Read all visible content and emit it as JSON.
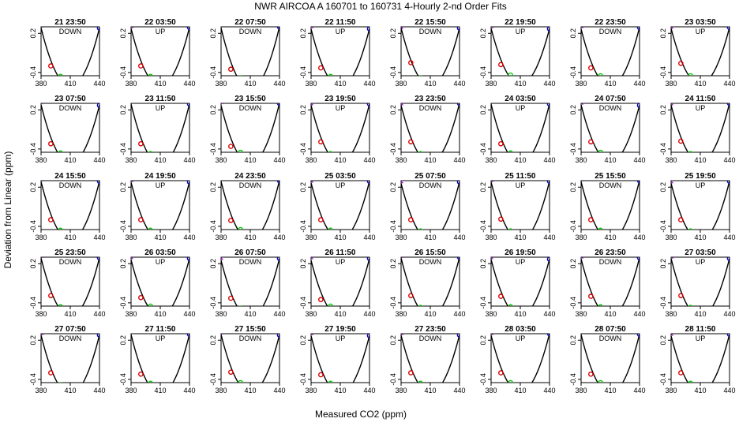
{
  "chart_data": {
    "type": "scatter",
    "title": "NWR   AIRCOA A   160701 to 160731   4-Hourly 2-nd Order Fits",
    "xlabel": "Measured CO2 (ppm)",
    "ylabel": "Deviation from Linear (ppm)",
    "xlim": [
      380,
      440
    ],
    "ylim": [
      -0.45,
      0.3
    ],
    "xticks": [
      "380",
      "410",
      "440"
    ],
    "yticks": [
      "-0.4",
      "0.2"
    ],
    "grid": false,
    "layout": "5 rows x 8 columns of small panels",
    "colors": {
      "curve": "#000000",
      "point_1": "#9900cc",
      "point_2": "#dd0000",
      "point_3": "#00cc00",
      "point_4": "#0000cc"
    },
    "panels": [
      {
        "title": "21 23:50",
        "mode": "DOWN",
        "points": [
          [
            380,
            0.32
          ],
          [
            390,
            -0.3
          ],
          [
            400,
            -0.46
          ],
          [
            440,
            0.28
          ]
        ]
      },
      {
        "title": "22 03:50",
        "mode": "UP",
        "points": [
          [
            380,
            0.31
          ],
          [
            390,
            -0.3
          ],
          [
            400,
            -0.46
          ],
          [
            440,
            0.29
          ]
        ]
      },
      {
        "title": "22 07:50",
        "mode": "DOWN",
        "points": [
          [
            380,
            0.33
          ],
          [
            390,
            -0.35
          ],
          [
            400,
            -0.48
          ],
          [
            440,
            0.3
          ]
        ]
      },
      {
        "title": "22 11:50",
        "mode": "UP",
        "points": [
          [
            380,
            0.31
          ],
          [
            390,
            -0.33
          ],
          [
            400,
            -0.46
          ],
          [
            440,
            0.27
          ]
        ]
      },
      {
        "title": "22 15:50",
        "mode": "DOWN",
        "points": [
          [
            380,
            0.3
          ],
          [
            390,
            -0.25
          ],
          [
            400,
            -0.48
          ],
          [
            440,
            0.28
          ]
        ]
      },
      {
        "title": "22 19:50",
        "mode": "UP",
        "points": [
          [
            380,
            0.31
          ],
          [
            390,
            -0.28
          ],
          [
            400,
            -0.44
          ],
          [
            440,
            0.27
          ]
        ]
      },
      {
        "title": "22 23:50",
        "mode": "DOWN",
        "points": [
          [
            380,
            0.31
          ],
          [
            390,
            -0.33
          ],
          [
            400,
            -0.45
          ],
          [
            440,
            0.29
          ]
        ]
      },
      {
        "title": "23 03:50",
        "mode": "UP",
        "points": [
          [
            380,
            0.3
          ],
          [
            390,
            -0.26
          ],
          [
            400,
            -0.45
          ],
          [
            440,
            0.29
          ]
        ]
      },
      {
        "title": "23 07:50",
        "mode": "DOWN",
        "points": [
          [
            380,
            0.32
          ],
          [
            390,
            -0.32
          ],
          [
            400,
            -0.46
          ],
          [
            440,
            0.27
          ]
        ]
      },
      {
        "title": "23 11:50",
        "mode": "UP",
        "points": [
          [
            380,
            0.33
          ],
          [
            390,
            -0.32
          ],
          [
            400,
            -0.47
          ],
          [
            440,
            0.29
          ]
        ]
      },
      {
        "title": "23 15:50",
        "mode": "DOWN",
        "points": [
          [
            380,
            0.32
          ],
          [
            390,
            -0.36
          ],
          [
            400,
            -0.45
          ],
          [
            440,
            0.3
          ]
        ]
      },
      {
        "title": "23 19:50",
        "mode": "UP",
        "points": [
          [
            380,
            0.3
          ],
          [
            390,
            -0.29
          ],
          [
            400,
            -0.47
          ],
          [
            440,
            0.29
          ]
        ]
      },
      {
        "title": "23 23:50",
        "mode": "DOWN",
        "points": [
          [
            380,
            0.3
          ],
          [
            390,
            -0.29
          ],
          [
            400,
            -0.47
          ],
          [
            440,
            0.3
          ]
        ]
      },
      {
        "title": "24 03:50",
        "mode": "UP",
        "points": [
          [
            380,
            0.33
          ],
          [
            390,
            -0.32
          ],
          [
            400,
            -0.46
          ],
          [
            440,
            0.29
          ]
        ]
      },
      {
        "title": "24 07:50",
        "mode": "DOWN",
        "points": [
          [
            380,
            0.31
          ],
          [
            390,
            -0.29
          ],
          [
            400,
            -0.45
          ],
          [
            440,
            0.27
          ]
        ]
      },
      {
        "title": "24 11:50",
        "mode": "UP",
        "points": [
          [
            380,
            0.3
          ],
          [
            390,
            -0.28
          ],
          [
            400,
            -0.47
          ],
          [
            440,
            0.3
          ]
        ]
      },
      {
        "title": "24 15:50",
        "mode": "DOWN",
        "points": [
          [
            380,
            0.32
          ],
          [
            390,
            -0.3
          ],
          [
            400,
            -0.46
          ],
          [
            440,
            0.29
          ]
        ]
      },
      {
        "title": "24 19:50",
        "mode": "UP",
        "points": [
          [
            380,
            0.31
          ],
          [
            390,
            -0.3
          ],
          [
            400,
            -0.46
          ],
          [
            440,
            0.28
          ]
        ]
      },
      {
        "title": "24 23:50",
        "mode": "DOWN",
        "points": [
          [
            380,
            0.33
          ],
          [
            390,
            -0.31
          ],
          [
            400,
            -0.45
          ],
          [
            440,
            0.3
          ]
        ]
      },
      {
        "title": "25 03:50",
        "mode": "UP",
        "points": [
          [
            380,
            0.3
          ],
          [
            390,
            -0.3
          ],
          [
            400,
            -0.46
          ],
          [
            440,
            0.29
          ]
        ]
      },
      {
        "title": "25 07:50",
        "mode": "DOWN",
        "points": [
          [
            380,
            0.29
          ],
          [
            390,
            -0.3
          ],
          [
            400,
            -0.47
          ],
          [
            440,
            0.28
          ]
        ]
      },
      {
        "title": "25 11:50",
        "mode": "UP",
        "points": [
          [
            380,
            0.31
          ],
          [
            390,
            -0.29
          ],
          [
            400,
            -0.47
          ],
          [
            440,
            0.29
          ]
        ]
      },
      {
        "title": "25 15:50",
        "mode": "DOWN",
        "points": [
          [
            380,
            0.32
          ],
          [
            390,
            -0.3
          ],
          [
            400,
            -0.46
          ],
          [
            440,
            0.3
          ]
        ]
      },
      {
        "title": "25 19:50",
        "mode": "UP",
        "points": [
          [
            380,
            0.29
          ],
          [
            390,
            -0.3
          ],
          [
            400,
            -0.47
          ],
          [
            440,
            0.29
          ]
        ]
      },
      {
        "title": "25 23:50",
        "mode": "DOWN",
        "points": [
          [
            380,
            0.32
          ],
          [
            390,
            -0.29
          ],
          [
            400,
            -0.46
          ],
          [
            440,
            0.29
          ]
        ]
      },
      {
        "title": "26 03:50",
        "mode": "UP",
        "points": [
          [
            380,
            0.3
          ],
          [
            390,
            -0.32
          ],
          [
            400,
            -0.45
          ],
          [
            440,
            0.28
          ]
        ]
      },
      {
        "title": "26 07:50",
        "mode": "DOWN",
        "points": [
          [
            380,
            0.29
          ],
          [
            390,
            -0.33
          ],
          [
            400,
            -0.48
          ],
          [
            440,
            0.28
          ]
        ]
      },
      {
        "title": "26 11:50",
        "mode": "UP",
        "points": [
          [
            380,
            0.3
          ],
          [
            390,
            -0.35
          ],
          [
            400,
            -0.45
          ],
          [
            440,
            0.28
          ]
        ]
      },
      {
        "title": "26 15:50",
        "mode": "DOWN",
        "points": [
          [
            380,
            0.32
          ],
          [
            390,
            -0.29
          ],
          [
            400,
            -0.47
          ],
          [
            440,
            0.3
          ]
        ]
      },
      {
        "title": "26 19:50",
        "mode": "UP",
        "points": [
          [
            380,
            0.3
          ],
          [
            390,
            -0.3
          ],
          [
            400,
            -0.46
          ],
          [
            440,
            0.27
          ]
        ]
      },
      {
        "title": "26 23:50",
        "mode": "DOWN",
        "points": [
          [
            380,
            0.31
          ],
          [
            390,
            -0.3
          ],
          [
            400,
            -0.46
          ],
          [
            440,
            0.29
          ]
        ]
      },
      {
        "title": "27 03:50",
        "mode": "UP",
        "points": [
          [
            380,
            0.31
          ],
          [
            390,
            -0.29
          ],
          [
            400,
            -0.47
          ],
          [
            440,
            0.28
          ]
        ]
      },
      {
        "title": "27 07:50",
        "mode": "DOWN",
        "points": [
          [
            380,
            0.31
          ],
          [
            390,
            -0.3
          ],
          [
            400,
            -0.48
          ],
          [
            440,
            0.28
          ]
        ]
      },
      {
        "title": "27 11:50",
        "mode": "UP",
        "points": [
          [
            380,
            0.33
          ],
          [
            390,
            -0.32
          ],
          [
            400,
            -0.46
          ],
          [
            440,
            0.29
          ]
        ]
      },
      {
        "title": "27 15:50",
        "mode": "DOWN",
        "points": [
          [
            380,
            0.32
          ],
          [
            390,
            -0.29
          ],
          [
            400,
            -0.45
          ],
          [
            440,
            0.28
          ]
        ]
      },
      {
        "title": "27 19:50",
        "mode": "UP",
        "points": [
          [
            380,
            0.31
          ],
          [
            390,
            -0.33
          ],
          [
            400,
            -0.46
          ],
          [
            440,
            0.27
          ]
        ]
      },
      {
        "title": "27 23:50",
        "mode": "DOWN",
        "points": [
          [
            380,
            0.31
          ],
          [
            390,
            -0.3
          ],
          [
            400,
            -0.46
          ],
          [
            440,
            0.28
          ]
        ]
      },
      {
        "title": "28 03:50",
        "mode": "UP",
        "points": [
          [
            380,
            0.31
          ],
          [
            390,
            -0.3
          ],
          [
            400,
            -0.45
          ],
          [
            440,
            0.3
          ]
        ]
      },
      {
        "title": "28 07:50",
        "mode": "DOWN",
        "points": [
          [
            380,
            0.33
          ],
          [
            390,
            -0.32
          ],
          [
            400,
            -0.45
          ],
          [
            440,
            0.29
          ]
        ]
      },
      {
        "title": "28 11:50",
        "mode": "UP",
        "points": [
          [
            380,
            0.3
          ],
          [
            390,
            -0.3
          ],
          [
            400,
            -0.46
          ],
          [
            440,
            0.29
          ]
        ]
      }
    ]
  }
}
